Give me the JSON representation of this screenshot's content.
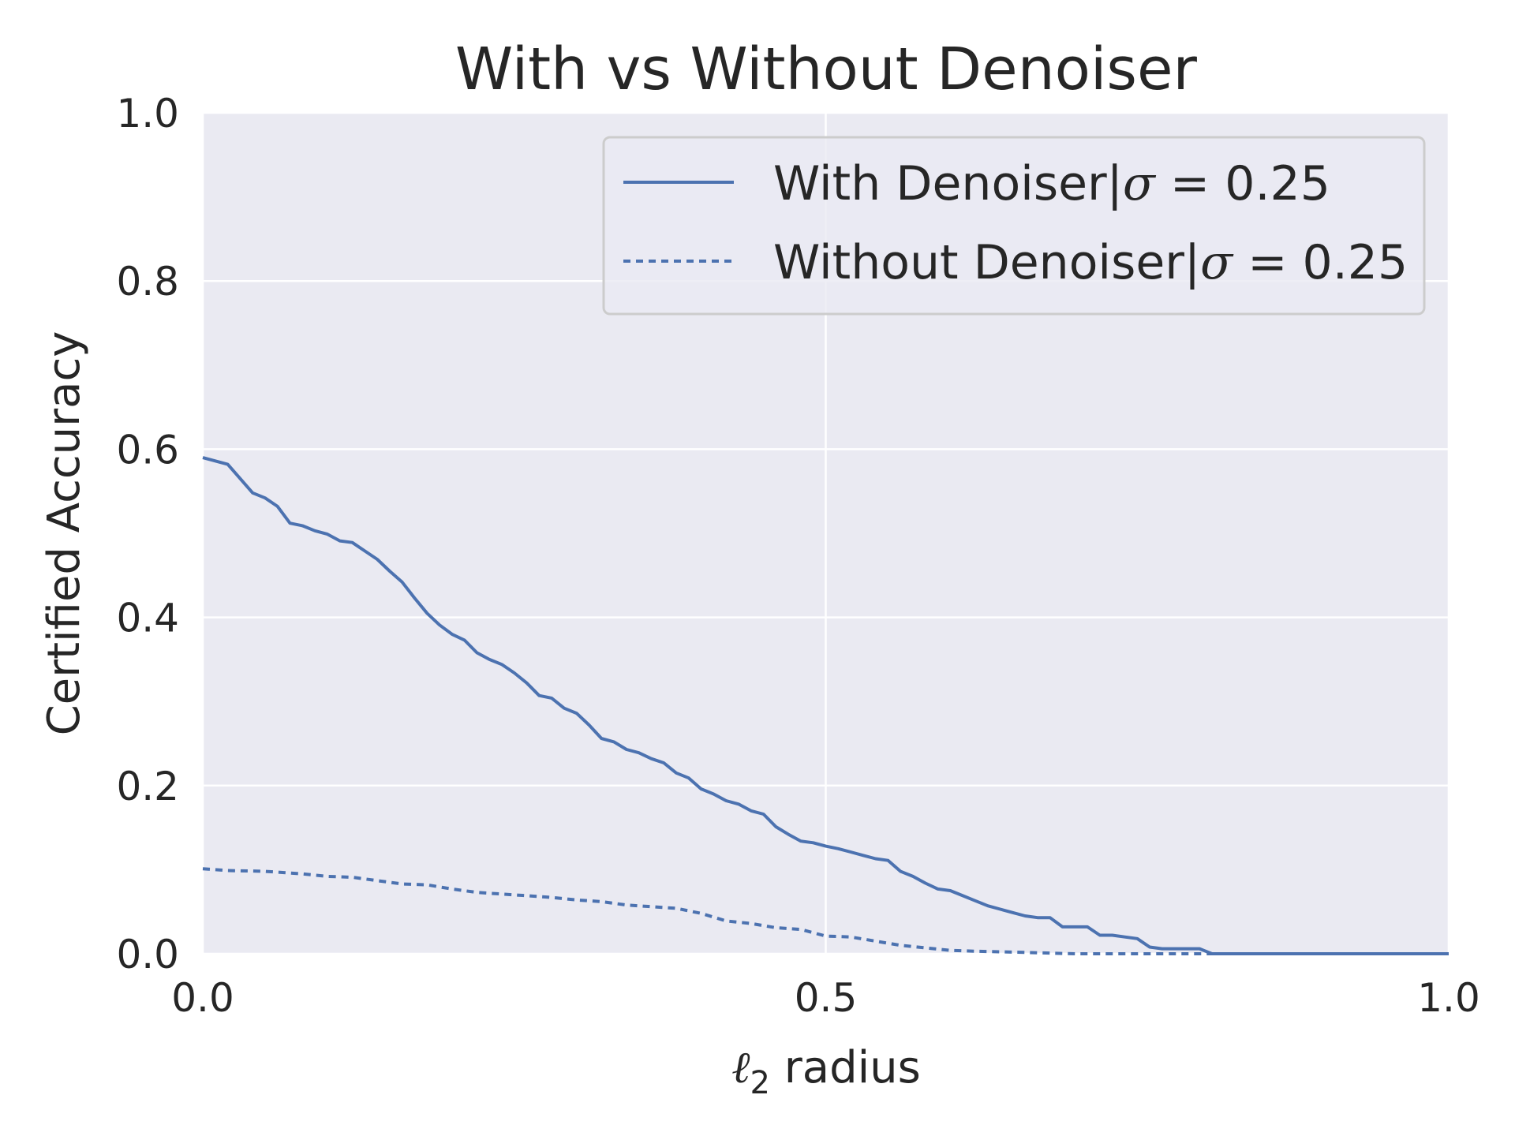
{
  "chart_data": {
    "type": "line",
    "title": "With vs Without Denoiser",
    "xlabel": "ℓ2 radius",
    "ylabel": "Certified Accuracy",
    "xlim": [
      0.0,
      1.0
    ],
    "ylim": [
      0.0,
      1.0
    ],
    "x_ticks": [
      "0.0",
      "0.5",
      "1.0"
    ],
    "y_ticks": [
      "0.0",
      "0.2",
      "0.4",
      "0.6",
      "0.8",
      "1.0"
    ],
    "grid": true,
    "legend_position": "top-right",
    "background_color": "#eaeaf2",
    "grid_color": "#ffffff",
    "series": [
      {
        "name": "With Denoiser|σ = 0.25",
        "linestyle": "solid",
        "color": "#4c72b0",
        "x": [
          0.0,
          0.02,
          0.03,
          0.04,
          0.05,
          0.06,
          0.07,
          0.08,
          0.09,
          0.1,
          0.11,
          0.12,
          0.13,
          0.14,
          0.15,
          0.16,
          0.17,
          0.18,
          0.19,
          0.2,
          0.21,
          0.22,
          0.23,
          0.24,
          0.25,
          0.26,
          0.27,
          0.28,
          0.29,
          0.3,
          0.31,
          0.32,
          0.33,
          0.34,
          0.35,
          0.36,
          0.37,
          0.38,
          0.39,
          0.4,
          0.41,
          0.42,
          0.43,
          0.44,
          0.45,
          0.46,
          0.47,
          0.48,
          0.49,
          0.5,
          0.51,
          0.52,
          0.53,
          0.54,
          0.55,
          0.56,
          0.57,
          0.58,
          0.59,
          0.6,
          0.61,
          0.62,
          0.63,
          0.64,
          0.65,
          0.66,
          0.67,
          0.68,
          0.69,
          0.7,
          0.71,
          0.72,
          0.73,
          0.74,
          0.75,
          0.76,
          0.77,
          0.78,
          0.79,
          0.8,
          0.81,
          0.82,
          0.83,
          0.85,
          0.9,
          0.95,
          1.0
        ],
        "y": [
          0.59,
          0.582,
          0.565,
          0.548,
          0.542,
          0.532,
          0.512,
          0.509,
          0.503,
          0.499,
          0.491,
          0.489,
          0.479,
          0.469,
          0.455,
          0.442,
          0.423,
          0.405,
          0.391,
          0.38,
          0.373,
          0.358,
          0.35,
          0.344,
          0.334,
          0.322,
          0.307,
          0.304,
          0.292,
          0.286,
          0.272,
          0.256,
          0.252,
          0.243,
          0.239,
          0.232,
          0.227,
          0.215,
          0.209,
          0.196,
          0.19,
          0.182,
          0.178,
          0.17,
          0.166,
          0.151,
          0.142,
          0.134,
          0.132,
          0.128,
          0.125,
          0.121,
          0.117,
          0.113,
          0.111,
          0.098,
          0.092,
          0.084,
          0.077,
          0.075,
          0.069,
          0.063,
          0.057,
          0.053,
          0.049,
          0.045,
          0.043,
          0.043,
          0.032,
          0.032,
          0.032,
          0.022,
          0.022,
          0.02,
          0.018,
          0.008,
          0.006,
          0.006,
          0.006,
          0.006,
          0.0,
          0.0,
          0.0,
          0.0,
          0.0,
          0.0,
          0.0
        ]
      },
      {
        "name": "Without Denoiser|σ = 0.25",
        "linestyle": "dotted",
        "color": "#4c72b0",
        "x": [
          0.0,
          0.02,
          0.05,
          0.08,
          0.1,
          0.12,
          0.14,
          0.16,
          0.18,
          0.2,
          0.22,
          0.24,
          0.26,
          0.28,
          0.3,
          0.32,
          0.34,
          0.36,
          0.38,
          0.4,
          0.42,
          0.44,
          0.46,
          0.48,
          0.5,
          0.52,
          0.54,
          0.56,
          0.58,
          0.6,
          0.62,
          0.65,
          0.7,
          0.75,
          0.8,
          0.9,
          1.0
        ],
        "y": [
          0.101,
          0.099,
          0.098,
          0.095,
          0.092,
          0.091,
          0.087,
          0.083,
          0.082,
          0.077,
          0.073,
          0.071,
          0.069,
          0.067,
          0.064,
          0.062,
          0.058,
          0.056,
          0.054,
          0.048,
          0.039,
          0.036,
          0.031,
          0.029,
          0.021,
          0.02,
          0.015,
          0.01,
          0.007,
          0.004,
          0.003,
          0.002,
          0.0,
          0.0,
          0.0,
          0.0,
          0.0
        ]
      }
    ]
  }
}
